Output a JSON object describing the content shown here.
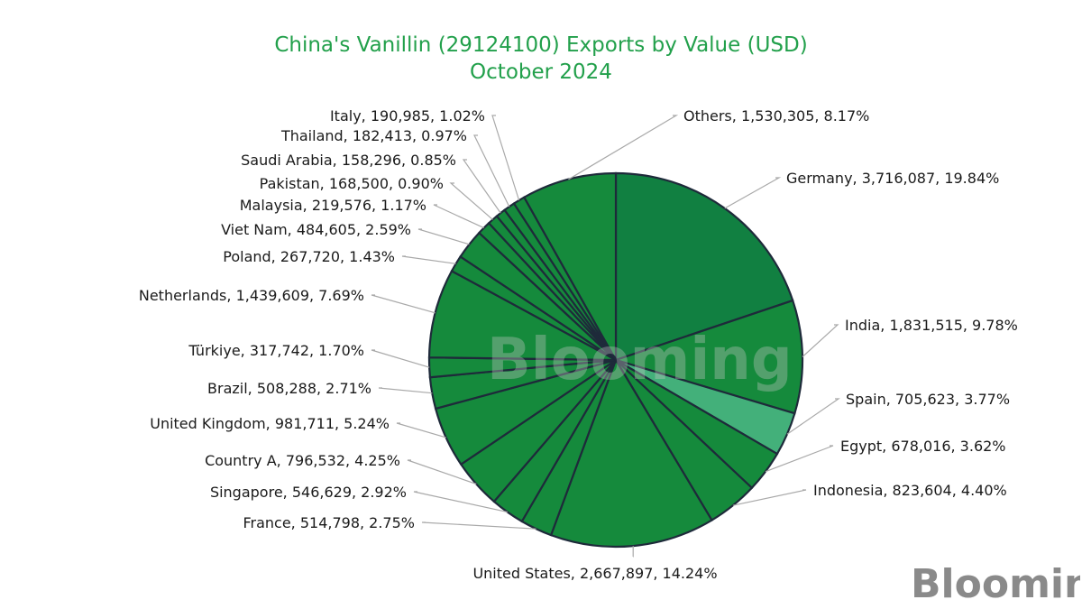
{
  "colors": {
    "title": "#22a04b",
    "slice": "#158a3c",
    "slice_dark": "#118041",
    "slice_light": "#43b07a"
  },
  "chart_data": {
    "type": "pie",
    "title": "China's Vanillin (29124100) Exports by Value (USD)",
    "subtitle": "October 2024",
    "watermark": "Blooming",
    "brand": "Blooming",
    "slices": [
      {
        "label": "Germany",
        "value": 3716087,
        "value_text": "3,716,087",
        "percent": 19.84,
        "percent_text": "19.84%"
      },
      {
        "label": "India",
        "value": 1831515,
        "value_text": "1,831,515",
        "percent": 9.78,
        "percent_text": "9.78%"
      },
      {
        "label": "Spain",
        "value": 705623,
        "value_text": "705,623",
        "percent": 3.77,
        "percent_text": "3.77%"
      },
      {
        "label": "Egypt",
        "value": 678016,
        "value_text": "678,016",
        "percent": 3.62,
        "percent_text": "3.62%"
      },
      {
        "label": "Indonesia",
        "value": 823604,
        "value_text": "823,604",
        "percent": 4.4,
        "percent_text": "4.40%"
      },
      {
        "label": "United States",
        "value": 2667897,
        "value_text": "2,667,897",
        "percent": 14.24,
        "percent_text": "14.24%"
      },
      {
        "label": "France",
        "value": 514798,
        "value_text": "514,798",
        "percent": 2.75,
        "percent_text": "2.75%"
      },
      {
        "label": "Singapore",
        "value": 546629,
        "value_text": "546,629",
        "percent": 2.92,
        "percent_text": "2.92%"
      },
      {
        "label": "Country A",
        "value": 796532,
        "value_text": "796,532",
        "percent": 4.25,
        "percent_text": "4.25%"
      },
      {
        "label": "United Kingdom",
        "value": 981711,
        "value_text": "981,711",
        "percent": 5.24,
        "percent_text": "5.24%"
      },
      {
        "label": "Brazil",
        "value": 508288,
        "value_text": "508,288",
        "percent": 2.71,
        "percent_text": "2.71%"
      },
      {
        "label": "Türkiye",
        "value": 317742,
        "value_text": "317,742",
        "percent": 1.7,
        "percent_text": "1.70%"
      },
      {
        "label": "Netherlands",
        "value": 1439609,
        "value_text": "1,439,609",
        "percent": 7.69,
        "percent_text": "7.69%"
      },
      {
        "label": "Poland",
        "value": 267720,
        "value_text": "267,720",
        "percent": 1.43,
        "percent_text": "1.43%"
      },
      {
        "label": "Viet Nam",
        "value": 484605,
        "value_text": "484,605",
        "percent": 2.59,
        "percent_text": "2.59%"
      },
      {
        "label": "Malaysia",
        "value": 219576,
        "value_text": "219,576",
        "percent": 1.17,
        "percent_text": "1.17%"
      },
      {
        "label": "Pakistan",
        "value": 168500,
        "value_text": "168,500",
        "percent": 0.9,
        "percent_text": "0.90%"
      },
      {
        "label": "Saudi Arabia",
        "value": 158296,
        "value_text": "158,296",
        "percent": 0.85,
        "percent_text": "0.85%"
      },
      {
        "label": "Thailand",
        "value": 182413,
        "value_text": "182,413",
        "percent": 0.97,
        "percent_text": "0.97%"
      },
      {
        "label": "Italy",
        "value": 190985,
        "value_text": "190,985",
        "percent": 1.02,
        "percent_text": "1.02%"
      },
      {
        "label": "Others",
        "value": 1530305,
        "value_text": "1,530,305",
        "percent": 8.17,
        "percent_text": "8.17%"
      }
    ]
  }
}
